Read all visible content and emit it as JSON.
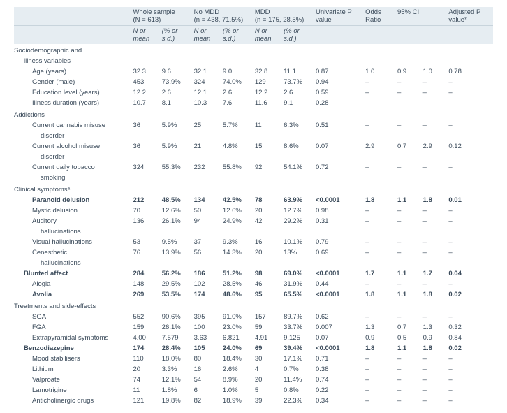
{
  "header": {
    "groups": [
      {
        "label": "Whole sample",
        "sub": "(N = 613)"
      },
      {
        "label": "No MDD",
        "sub": "(n = 438, 71.5%)"
      },
      {
        "label": "MDD",
        "sub": "(n = 175, 28.5%)"
      },
      {
        "label": "Univariate P value"
      },
      {
        "label": "Odds Ratio"
      },
      {
        "label": "95% CI"
      },
      {
        "label": "Adjusted P value*"
      }
    ],
    "sub": {
      "n": "N or mean",
      "p": "(% or s.d.)"
    }
  },
  "sections": [
    {
      "title": "Sociodemographic and",
      "cont": "illness variables",
      "rows": [
        {
          "lbl": "Age (years)",
          "w": [
            "32.3",
            "9.6"
          ],
          "n": [
            "32.1",
            "9.0"
          ],
          "m": [
            "32.8",
            "11.1"
          ],
          "u": "0.87",
          "or": "1.0",
          "ci": [
            "0.9",
            "1.0"
          ],
          "a": "0.78"
        },
        {
          "lbl": "Gender (male)",
          "w": [
            "453",
            "73.9%"
          ],
          "n": [
            "324",
            "74.0%"
          ],
          "m": [
            "129",
            "73.7%"
          ],
          "u": "0.94",
          "or": "–",
          "ci": [
            "–",
            "–"
          ],
          "a": "–"
        },
        {
          "lbl": "Education level (years)",
          "w": [
            "12.2",
            "2.6"
          ],
          "n": [
            "12.1",
            "2.6"
          ],
          "m": [
            "12.2",
            "2.6"
          ],
          "u": "0.59",
          "or": "–",
          "ci": [
            "–",
            "–"
          ],
          "a": "–"
        },
        {
          "lbl": "Illness duration (years)",
          "w": [
            "10.7",
            "8.1"
          ],
          "n": [
            "10.3",
            "7.6"
          ],
          "m": [
            "11.6",
            "9.1"
          ],
          "u": "0.28",
          "or": "",
          "ci": [
            "",
            ""
          ],
          "a": ""
        }
      ]
    },
    {
      "title": "Addictions",
      "rows": [
        {
          "lbl": "Current cannabis misuse",
          "cont": "disorder",
          "w": [
            "36",
            "5.9%"
          ],
          "n": [
            "25",
            "5.7%"
          ],
          "m": [
            "11",
            "6.3%"
          ],
          "u": "0.51",
          "or": "–",
          "ci": [
            "–",
            "–"
          ],
          "a": "–"
        },
        {
          "lbl": "Current alcohol misuse",
          "cont": "disorder",
          "w": [
            "36",
            "5.9%"
          ],
          "n": [
            "21",
            "4.8%"
          ],
          "m": [
            "15",
            "8.6%"
          ],
          "u": "0.07",
          "or": "2.9",
          "ci": [
            "0.7",
            "2.9"
          ],
          "a": "0.12"
        },
        {
          "lbl": "Current daily tobacco",
          "cont": "smoking",
          "w": [
            "324",
            "55.3%"
          ],
          "n": [
            "232",
            "55.8%"
          ],
          "m": [
            "92",
            "54.1%"
          ],
          "u": "0.72",
          "or": "–",
          "ci": [
            "–",
            "–"
          ],
          "a": "–"
        }
      ]
    },
    {
      "title": "Clinical symptomsᵃ",
      "outdent": true,
      "rows": [
        {
          "lbl": "Paranoid delusion",
          "bold": true,
          "w": [
            "212",
            "48.5%"
          ],
          "n": [
            "134",
            "42.5%"
          ],
          "m": [
            "78",
            "63.9%"
          ],
          "u": "<0.0001",
          "or": "1.8",
          "ci": [
            "1.1",
            "1.8"
          ],
          "a": "0.01"
        },
        {
          "lbl": "Mystic delusion",
          "w": [
            "70",
            "12.6%"
          ],
          "n": [
            "50",
            "12.6%"
          ],
          "m": [
            "20",
            "12.7%"
          ],
          "u": "0.98",
          "or": "–",
          "ci": [
            "–",
            "–"
          ],
          "a": "–"
        },
        {
          "lbl": "Auditory",
          "cont": "hallucinations",
          "w": [
            "136",
            "26.1%"
          ],
          "n": [
            "94",
            "24.9%"
          ],
          "m": [
            "42",
            "29.2%"
          ],
          "u": "0.31",
          "or": "–",
          "ci": [
            "–",
            "–"
          ],
          "a": "–"
        },
        {
          "lbl": "Visual hallucinations",
          "w": [
            "53",
            "9.5%"
          ],
          "n": [
            "37",
            "9.3%"
          ],
          "m": [
            "16",
            "10.1%"
          ],
          "u": "0.79",
          "or": "–",
          "ci": [
            "–",
            "–"
          ],
          "a": "–"
        },
        {
          "lbl": "Cenesthetic",
          "cont": "hallucinations",
          "w": [
            "76",
            "13.9%"
          ],
          "n": [
            "56",
            "14.3%"
          ],
          "m": [
            "20",
            "13%"
          ],
          "u": "0.69",
          "or": "–",
          "ci": [
            "–",
            "–"
          ],
          "a": "–"
        },
        {
          "lbl": "Blunted affect",
          "bold": true,
          "ind": 1,
          "w": [
            "284",
            "56.2%"
          ],
          "n": [
            "186",
            "51.2%"
          ],
          "m": [
            "98",
            "69.0%"
          ],
          "u": "<0.0001",
          "or": "1.7",
          "ci": [
            "1.1",
            "1.7"
          ],
          "a": "0.04"
        },
        {
          "lbl": "Alogia",
          "w": [
            "148",
            "29.5%"
          ],
          "n": [
            "102",
            "28.5%"
          ],
          "m": [
            "46",
            "31.9%"
          ],
          "u": "0.44",
          "or": "–",
          "ci": [
            "–",
            "–"
          ],
          "a": "–"
        },
        {
          "lbl": "Avolia",
          "bold": true,
          "w": [
            "269",
            "53.5%"
          ],
          "n": [
            "174",
            "48.6%"
          ],
          "m": [
            "95",
            "65.5%"
          ],
          "u": "<0.0001",
          "or": "1.8",
          "ci": [
            "1.1",
            "1.8"
          ],
          "a": "0.02"
        }
      ]
    },
    {
      "title": "Treatments and side-effects",
      "outdent": true,
      "rows": [
        {
          "lbl": "SGA",
          "w": [
            "552",
            "90.6%"
          ],
          "n": [
            "395",
            "91.0%"
          ],
          "m": [
            "157",
            "89.7%"
          ],
          "u": "0.62",
          "or": "–",
          "ci": [
            "–",
            "–"
          ],
          "a": "–"
        },
        {
          "lbl": "FGA",
          "w": [
            "159",
            "26.1%"
          ],
          "n": [
            "100",
            "23.0%"
          ],
          "m": [
            "59",
            "33.7%"
          ],
          "u": "0.007",
          "or": "1.3",
          "ci": [
            "0.7",
            "1.3"
          ],
          "a": "0.32"
        },
        {
          "lbl": "Extrapyramidal symptoms",
          "w": [
            "4.00",
            "7.579"
          ],
          "n": [
            "3.63",
            "6.821"
          ],
          "m": [
            "4.91",
            "9.125"
          ],
          "u": "0.07",
          "or": "0.9",
          "ci": [
            "0.5",
            "0.9"
          ],
          "a": "0.84"
        },
        {
          "lbl": "Benzodiazepine",
          "bold": true,
          "ind": 1,
          "w": [
            "174",
            "28.4%"
          ],
          "n": [
            "105",
            "24.0%"
          ],
          "m": [
            "69",
            "39.4%"
          ],
          "u": "<0.0001",
          "or": "1.8",
          "ci": [
            "1.1",
            "1.8"
          ],
          "a": "0.02"
        },
        {
          "lbl": "Mood stabilisers",
          "w": [
            "110",
            "18.0%"
          ],
          "n": [
            "80",
            "18.4%"
          ],
          "m": [
            "30",
            "17.1%"
          ],
          "u": "0.71",
          "or": "–",
          "ci": [
            "–",
            "–"
          ],
          "a": "–"
        },
        {
          "lbl": "Lithium",
          "w": [
            "20",
            "3.3%"
          ],
          "n": [
            "16",
            "2.6%"
          ],
          "m": [
            "4",
            "0.7%"
          ],
          "u": "0.38",
          "or": "–",
          "ci": [
            "–",
            "–"
          ],
          "a": "–"
        },
        {
          "lbl": "Valproate",
          "w": [
            "74",
            "12.1%"
          ],
          "n": [
            "54",
            "8.9%"
          ],
          "m": [
            "20",
            "11.4%"
          ],
          "u": "0.74",
          "or": "–",
          "ci": [
            "–",
            "–"
          ],
          "a": "–"
        },
        {
          "lbl": "Lamotrigine",
          "w": [
            "11",
            "1.8%"
          ],
          "n": [
            "6",
            "1.0%"
          ],
          "m": [
            "5",
            "0.8%"
          ],
          "u": "0.22",
          "or": "–",
          "ci": [
            "–",
            "–"
          ],
          "a": "–"
        },
        {
          "lbl": "Anticholinergic drugs",
          "w": [
            "121",
            "19.8%"
          ],
          "n": [
            "82",
            "18.9%"
          ],
          "m": [
            "39",
            "22.3%"
          ],
          "u": "0.34",
          "or": "–",
          "ci": [
            "–",
            "–"
          ],
          "a": "–"
        }
      ]
    }
  ]
}
